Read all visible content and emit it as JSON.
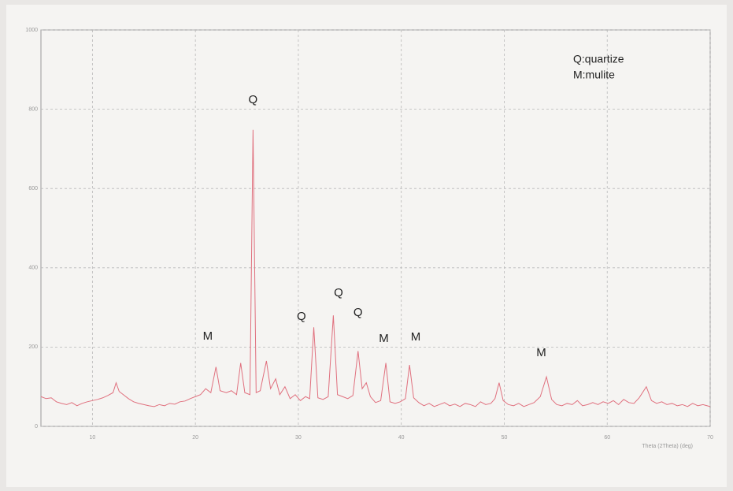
{
  "chart_data": {
    "type": "line",
    "x_label": "Theta (2Theta) (deg)",
    "x": [
      5,
      5.5,
      6,
      6.5,
      7,
      7.5,
      8,
      8.5,
      9,
      9.5,
      10,
      10.5,
      11,
      11.5,
      12,
      12.3,
      12.6,
      13,
      13.5,
      14,
      14.5,
      15,
      15.5,
      16,
      16.5,
      17,
      17.5,
      18,
      18.5,
      19,
      19.5,
      20,
      20.5,
      21,
      21.5,
      22,
      22.4,
      23,
      23.5,
      24,
      24.4,
      24.8,
      25.3,
      25.6,
      25.9,
      26.3,
      26.9,
      27.3,
      27.8,
      28.2,
      28.7,
      29.2,
      29.7,
      30.2,
      30.7,
      31.1,
      31.5,
      31.9,
      32.4,
      32.9,
      33.4,
      33.8,
      34.3,
      34.8,
      35.3,
      35.8,
      36.2,
      36.6,
      37,
      37.5,
      38,
      38.5,
      38.9,
      39.4,
      39.9,
      40.4,
      40.8,
      41.2,
      41.7,
      42.2,
      42.7,
      43.2,
      43.7,
      44.2,
      44.7,
      45.2,
      45.7,
      46.2,
      46.7,
      47.2,
      47.7,
      48.2,
      48.7,
      49.1,
      49.5,
      49.9,
      50.4,
      50.9,
      51.4,
      51.9,
      52.4,
      52.9,
      53.5,
      54.1,
      54.6,
      55.1,
      55.6,
      56.1,
      56.6,
      57.1,
      57.6,
      58.1,
      58.6,
      59.1,
      59.6,
      60.1,
      60.6,
      61.1,
      61.6,
      62.1,
      62.6,
      63.1,
      63.8,
      64.3,
      64.8,
      65.3,
      65.8,
      66.3,
      66.8,
      67.3,
      67.8,
      68.3,
      68.8,
      69.3,
      70
    ],
    "series": [
      {
        "color": "#e0707e",
        "values": [
          75,
          70,
          72,
          62,
          58,
          55,
          60,
          52,
          58,
          62,
          65,
          68,
          72,
          78,
          85,
          110,
          88,
          80,
          70,
          62,
          58,
          55,
          52,
          50,
          55,
          52,
          58,
          56,
          62,
          64,
          70,
          75,
          80,
          95,
          85,
          150,
          90,
          85,
          90,
          80,
          160,
          85,
          80,
          748,
          85,
          90,
          165,
          95,
          120,
          80,
          100,
          70,
          80,
          65,
          75,
          70,
          250,
          72,
          68,
          75,
          280,
          80,
          75,
          70,
          78,
          190,
          95,
          110,
          75,
          60,
          65,
          160,
          62,
          58,
          62,
          70,
          155,
          72,
          60,
          52,
          58,
          50,
          55,
          60,
          52,
          56,
          50,
          58,
          55,
          50,
          62,
          55,
          58,
          70,
          110,
          65,
          55,
          52,
          58,
          50,
          55,
          60,
          75,
          125,
          68,
          55,
          52,
          58,
          55,
          65,
          52,
          55,
          60,
          55,
          62,
          58,
          65,
          55,
          68,
          60,
          58,
          72,
          100,
          65,
          58,
          62,
          55,
          58,
          52,
          55,
          50,
          58,
          52,
          55,
          50
        ]
      }
    ],
    "xlim": [
      5,
      70
    ],
    "xticks": [
      10,
      20,
      30,
      40,
      50,
      60,
      70
    ],
    "ylim": [
      0,
      1000
    ],
    "yticks": [
      0,
      200,
      400,
      600,
      800,
      1000
    ],
    "grid": true,
    "annotations": [
      {
        "text": "Q",
        "x": 25.6,
        "y": 823
      },
      {
        "text": "M",
        "x": 21.2,
        "y": 227
      },
      {
        "text": "Q",
        "x": 30.3,
        "y": 276
      },
      {
        "text": "Q",
        "x": 33.9,
        "y": 336
      },
      {
        "text": "Q",
        "x": 35.8,
        "y": 286
      },
      {
        "text": "M",
        "x": 38.3,
        "y": 221
      },
      {
        "text": "M",
        "x": 41.4,
        "y": 225
      },
      {
        "text": "M",
        "x": 53.6,
        "y": 185
      }
    ],
    "legend_text": [
      "Q:quartize",
      "M:mulite"
    ]
  }
}
